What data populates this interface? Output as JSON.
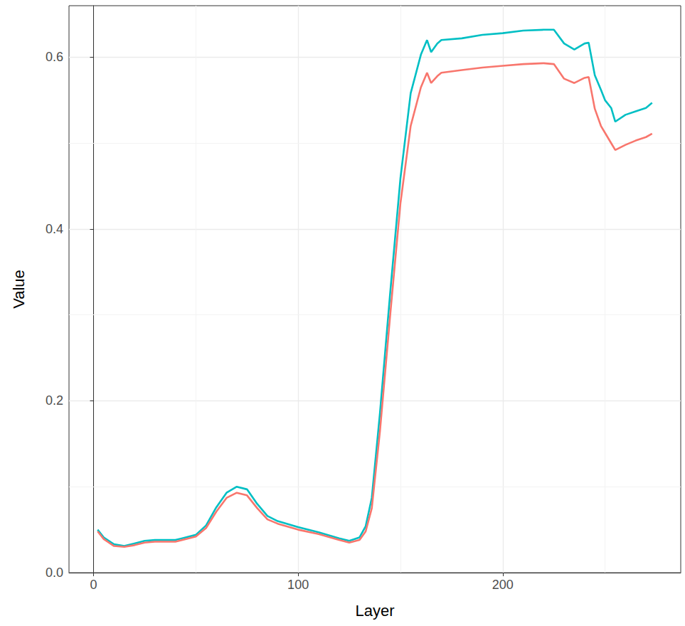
{
  "chart_data": {
    "type": "line",
    "x_label": "Layer",
    "y_label": "Value",
    "xlim": [
      -12,
      287
    ],
    "xticks": [
      0,
      100,
      200
    ],
    "ylim": [
      0,
      0.66
    ],
    "yticks": [
      {
        "value": 0,
        "label": "0.0"
      },
      0.2,
      0.4,
      0.6
    ],
    "grid": true,
    "x": [
      2,
      5,
      10,
      15,
      20,
      25,
      30,
      40,
      50,
      55,
      60,
      65,
      70,
      75,
      80,
      85,
      90,
      100,
      110,
      120,
      125,
      130,
      133,
      136,
      140,
      145,
      150,
      155,
      160,
      163,
      165,
      168,
      170,
      180,
      190,
      200,
      210,
      220,
      225,
      230,
      235,
      240,
      242,
      245,
      248,
      250,
      253,
      255,
      260,
      265,
      270,
      273
    ],
    "series": [
      {
        "color": "#00BFC4",
        "values": [
          0.05,
          0.041,
          0.033,
          0.031,
          0.034,
          0.037,
          0.038,
          0.038,
          0.044,
          0.055,
          0.076,
          0.093,
          0.1,
          0.097,
          0.08,
          0.066,
          0.06,
          0.053,
          0.047,
          0.04,
          0.037,
          0.041,
          0.054,
          0.087,
          0.186,
          0.326,
          0.459,
          0.558,
          0.603,
          0.62,
          0.606,
          0.616,
          0.62,
          0.622,
          0.626,
          0.628,
          0.631,
          0.632,
          0.632,
          0.616,
          0.609,
          0.616,
          0.617,
          0.579,
          0.562,
          0.55,
          0.541,
          0.525,
          0.533,
          0.537,
          0.541,
          0.547
        ]
      },
      {
        "color": "#F8766D",
        "values": [
          0.048,
          0.039,
          0.031,
          0.03,
          0.032,
          0.035,
          0.036,
          0.036,
          0.042,
          0.052,
          0.071,
          0.087,
          0.093,
          0.09,
          0.075,
          0.062,
          0.057,
          0.05,
          0.045,
          0.038,
          0.035,
          0.038,
          0.048,
          0.075,
          0.165,
          0.3,
          0.43,
          0.52,
          0.565,
          0.582,
          0.57,
          0.578,
          0.582,
          0.585,
          0.588,
          0.59,
          0.592,
          0.593,
          0.592,
          0.575,
          0.57,
          0.576,
          0.577,
          0.54,
          0.52,
          0.512,
          0.5,
          0.492,
          0.498,
          0.503,
          0.507,
          0.511
        ]
      }
    ]
  }
}
